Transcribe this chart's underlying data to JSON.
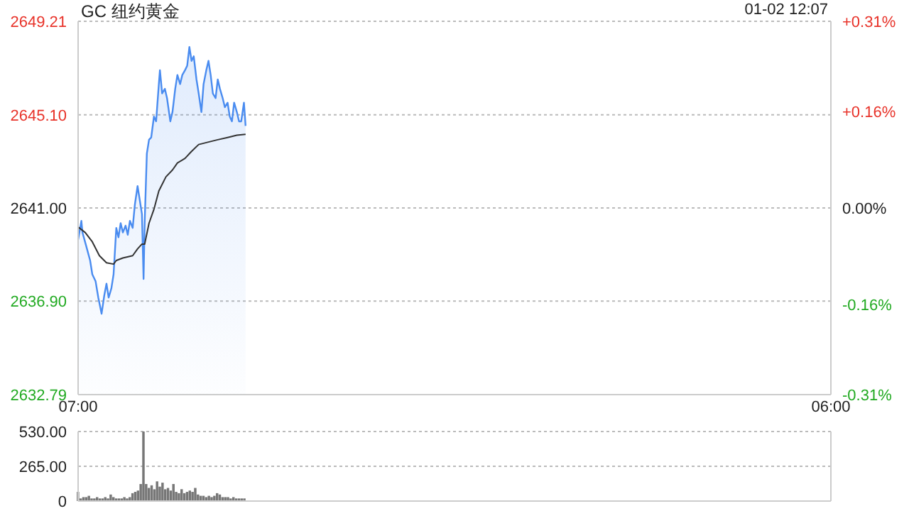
{
  "chart_data": [
    {
      "type": "line",
      "title": "GC 纽约黄金",
      "annotations": [
        "01-02 12:07"
      ],
      "xlim": [
        "--01-02T07:00",
        "--01-03T06:00"
      ],
      "xticks": [
        {
          "value": "--01-02T07:00",
          "label": "07:00"
        },
        {
          "value": "--01-03T06:00",
          "label": "06:00"
        }
      ],
      "ylim": [
        2632.79,
        2649.21
      ],
      "yticks": [
        2632.79,
        {
          "value": 2636.9,
          "label": "2636.90"
        },
        {
          "value": 2641,
          "label": "2641.00"
        },
        {
          "value": 2645.1,
          "label": "2645.10"
        },
        2649.21
      ],
      "y2lim": [
        -0.31,
        0.31
      ],
      "y2ticks": [
        {
          "value": -0.31,
          "label": "-0.31%"
        },
        {
          "value": -0.16,
          "label": "-0.16%"
        },
        {
          "value": 0,
          "label": "0.00%"
        },
        {
          "value": 0.16,
          "label": "+0.16%"
        },
        {
          "value": 0.31,
          "label": "+0.31%"
        }
      ],
      "grid": "y",
      "marker": "none",
      "series": [
        {
          "type": "area",
          "color": "#4a8cf0",
          "x": [
            "--01-02T07:00",
            "--01-02T07:06",
            "--01-02T07:08",
            "--01-02T07:15",
            "--01-02T07:22",
            "--01-02T07:26",
            "--01-02T07:32",
            "--01-02T07:37",
            "--01-02T07:43",
            "--01-02T07:48",
            "--01-02T07:52",
            "--01-02T07:56",
            "--01-02T08:01",
            "--01-02T08:05",
            "--01-02T08:10",
            "--01-02T08:14",
            "--01-02T08:18",
            "--01-02T08:22",
            "--01-02T08:27",
            "--01-02T08:31",
            "--01-02T08:35",
            "--01-02T08:40",
            "--01-02T08:44",
            "--01-02T08:49",
            "--01-02T08:53",
            "--01-02T08:57",
            "--01-02T09:00",
            "--01-02T09:02",
            "--01-02T09:06",
            "--01-02T09:10",
            "--01-02T09:14",
            "--01-02T09:19",
            "--01-02T09:23",
            "--01-02T09:28",
            "--01-02T09:30",
            "--01-02T09:34",
            "--01-02T09:39",
            "--01-02T09:43",
            "--01-02T09:49",
            "--01-02T09:53",
            "--01-02T09:58",
            "--01-02T10:02",
            "--01-02T10:07",
            "--01-02T10:11",
            "--01-02T10:16",
            "--01-02T10:20",
            "--01-02T10:24",
            "--01-02T10:28",
            "--01-02T10:32",
            "--01-02T10:37",
            "--01-02T10:41",
            "--01-02T10:46",
            "--01-02T10:50",
            "--01-02T10:55",
            "--01-02T10:59",
            "--01-02T11:03",
            "--01-02T11:07",
            "--01-02T11:12",
            "--01-02T11:16",
            "--01-02T11:20",
            "--01-02T11:25",
            "--01-02T11:29",
            "--01-02T11:34",
            "--01-02T11:38",
            "--01-02T11:42",
            "--01-02T11:46",
            "--01-02T11:51",
            "--01-02T11:55",
            "--01-02T11:59",
            "--01-02T12:04",
            "--01-02T12:07"
          ],
          "values": [
            2639.61,
            2640.43,
            2639.92,
            2639.31,
            2638.69,
            2638.08,
            2637.78,
            2637.06,
            2636.35,
            2637.16,
            2637.67,
            2637.06,
            2637.47,
            2638.08,
            2640.12,
            2639.71,
            2640.33,
            2639.92,
            2640.22,
            2639.82,
            2640.43,
            2640.12,
            2641.14,
            2641.96,
            2641.35,
            2640.73,
            2637.88,
            2640.33,
            2643.39,
            2644.0,
            2644.1,
            2645.02,
            2644.81,
            2646.45,
            2647.06,
            2646.04,
            2646.24,
            2645.83,
            2644.81,
            2645.22,
            2646.24,
            2646.85,
            2646.45,
            2646.85,
            2647.06,
            2647.26,
            2648.08,
            2647.47,
            2647.67,
            2646.65,
            2646.04,
            2645.22,
            2646.45,
            2647.06,
            2647.47,
            2646.85,
            2646.04,
            2645.83,
            2646.65,
            2646.24,
            2645.83,
            2645.43,
            2645.63,
            2645.02,
            2644.81,
            2645.63,
            2645.22,
            2644.81,
            2644.81,
            2645.63,
            2644.61
          ]
        },
        {
          "type": "line",
          "color": "#333333",
          "x": [
            "--01-02T07:00",
            "--01-02T07:13",
            "--01-02T07:26",
            "--01-02T07:39",
            "--01-02T07:52",
            "--01-02T08:05",
            "--01-02T08:10",
            "--01-02T08:22",
            "--01-02T08:40",
            "--01-02T08:49",
            "--01-02T08:57",
            "--01-02T09:02",
            "--01-02T09:10",
            "--01-02T09:19",
            "--01-02T09:28",
            "--01-02T09:41",
            "--01-02T09:53",
            "--01-02T10:02",
            "--01-02T10:16",
            "--01-02T10:28",
            "--01-02T10:41",
            "--01-02T10:59",
            "--01-02T11:16",
            "--01-02T11:34",
            "--01-02T11:51",
            "--01-02T12:07"
          ],
          "values": [
            2640.16,
            2639.92,
            2639.51,
            2638.9,
            2638.59,
            2638.53,
            2638.69,
            2638.8,
            2638.9,
            2639.2,
            2639.41,
            2639.41,
            2640.33,
            2640.94,
            2641.75,
            2642.37,
            2642.67,
            2642.98,
            2643.18,
            2643.49,
            2643.79,
            2643.9,
            2644.0,
            2644.1,
            2644.2,
            2644.24
          ]
        }
      ]
    },
    {
      "type": "bar",
      "xlim": [
        "--01-02T07:00",
        "--01-03T06:00"
      ],
      "tick_labels": "y",
      "ylim": [
        0,
        530
      ],
      "yticks": [
        0,
        {
          "value": 265,
          "label": "265.00"
        },
        {
          "value": 530,
          "label": "530.00"
        }
      ],
      "grid": "y",
      "series": [
        {
          "color": "#777777",
          "x": [
            "--01-02T07:00",
            "--01-02T07:05",
            "--01-02T07:10",
            "--01-02T07:15",
            "--01-02T07:20",
            "--01-02T07:25",
            "--01-02T07:30",
            "--01-02T07:35",
            "--01-02T07:40",
            "--01-02T07:45",
            "--01-02T07:50",
            "--01-02T07:55",
            "--01-02T08:00",
            "--01-02T08:05",
            "--01-02T08:10",
            "--01-02T08:15",
            "--01-02T08:20",
            "--01-02T08:25",
            "--01-02T08:30",
            "--01-02T08:35",
            "--01-02T08:40",
            "--01-02T08:45",
            "--01-02T08:50",
            "--01-02T08:55",
            "--01-02T09:00",
            "--01-02T09:05",
            "--01-02T09:10",
            "--01-02T09:15",
            "--01-02T09:20",
            "--01-02T09:25",
            "--01-02T09:30",
            "--01-02T09:35",
            "--01-02T09:40",
            "--01-02T09:45",
            "--01-02T09:50",
            "--01-02T09:55",
            "--01-02T10:00",
            "--01-02T10:05",
            "--01-02T10:10",
            "--01-02T10:15",
            "--01-02T10:20",
            "--01-02T10:25",
            "--01-02T10:30",
            "--01-02T10:35",
            "--01-02T10:40",
            "--01-02T10:45",
            "--01-02T10:50",
            "--01-02T10:55",
            "--01-02T11:00",
            "--01-02T11:05",
            "--01-02T11:10",
            "--01-02T11:15",
            "--01-02T11:20",
            "--01-02T11:25",
            "--01-02T11:30",
            "--01-02T11:35",
            "--01-02T11:40",
            "--01-02T11:45",
            "--01-02T11:50",
            "--01-02T11:55",
            "--01-02T12:00",
            "--01-02T12:05"
          ],
          "values": [
            70,
            20,
            30,
            30,
            40,
            20,
            20,
            30,
            20,
            20,
            30,
            20,
            50,
            30,
            20,
            20,
            20,
            30,
            20,
            30,
            60,
            70,
            80,
            130,
            530,
            130,
            100,
            120,
            90,
            150,
            110,
            140,
            90,
            100,
            80,
            130,
            70,
            60,
            90,
            60,
            70,
            80,
            70,
            100,
            50,
            40,
            40,
            30,
            40,
            30,
            40,
            60,
            50,
            30,
            30,
            30,
            20,
            30,
            20,
            20,
            20,
            20
          ]
        }
      ]
    }
  ]
}
